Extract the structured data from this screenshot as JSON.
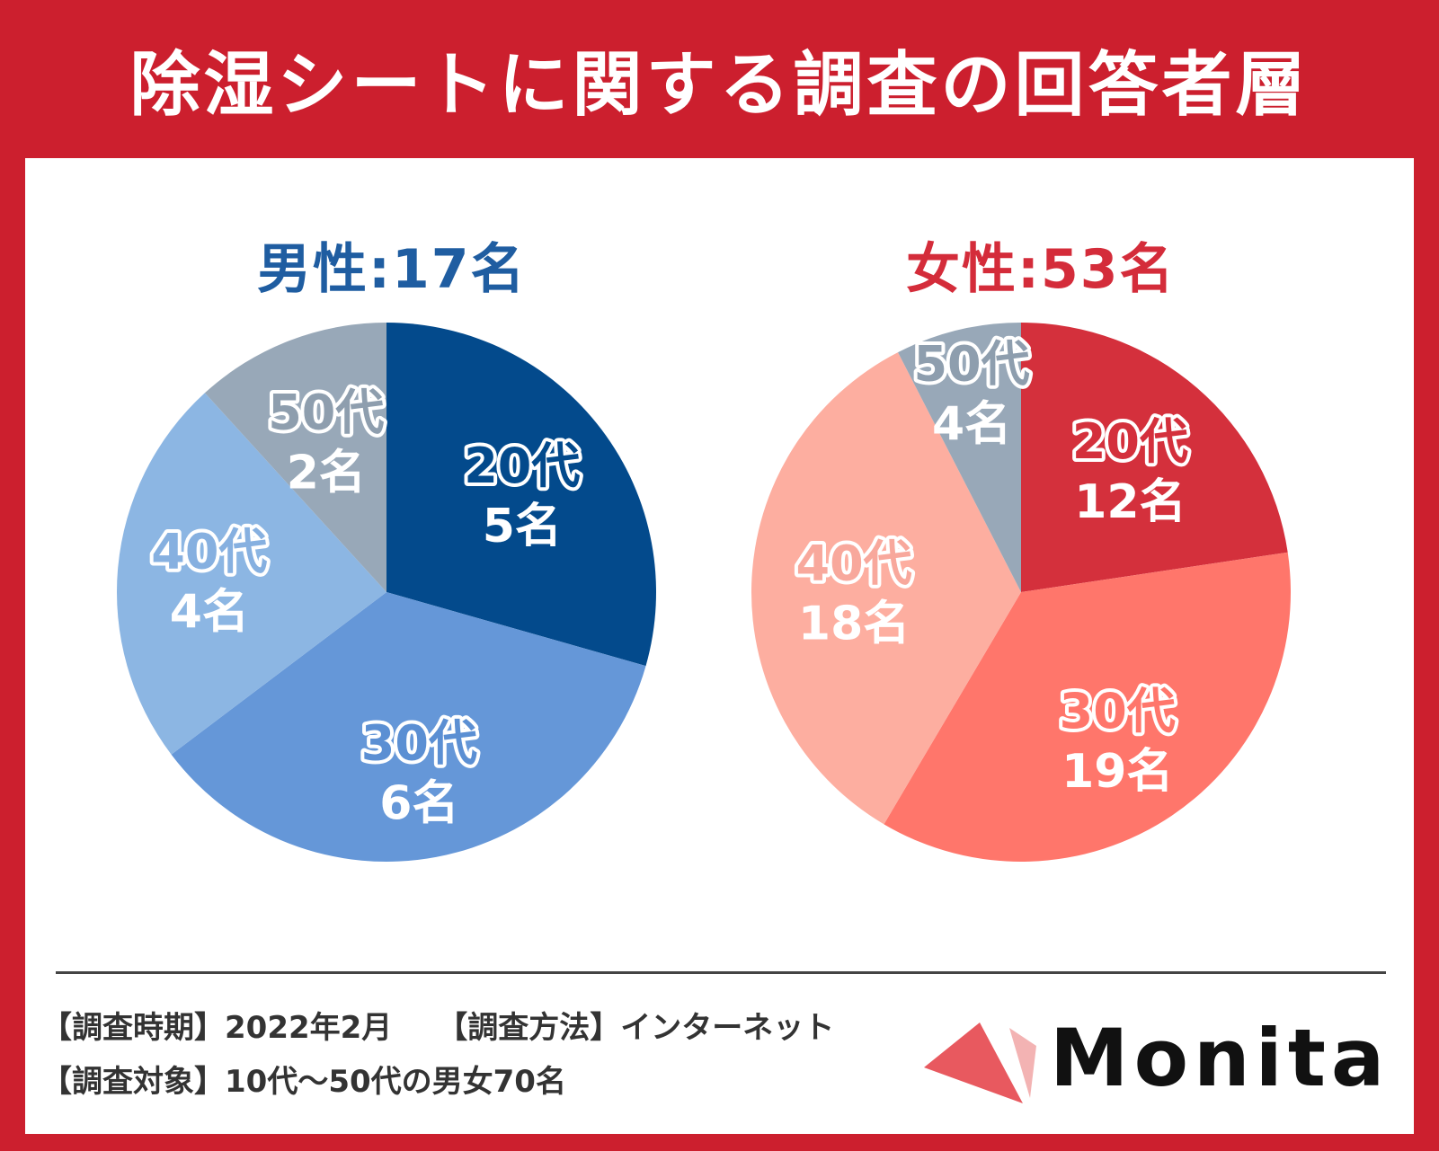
{
  "title": "除湿シートに関する調査の回答者層",
  "colors": {
    "background": "#cc1f2e",
    "panel": "#ffffff",
    "male_heading": "#1f5da1",
    "female_heading": "#d42c3a",
    "brand_triangle": "#e8595f",
    "brand_triangle_light": "#f3b3b3"
  },
  "chart_data": [
    {
      "type": "pie",
      "title": "男性:17名",
      "categories": [
        "20代",
        "30代",
        "40代",
        "50代"
      ],
      "values": [
        5,
        6,
        4,
        2
      ],
      "value_labels": [
        "5名",
        "6名",
        "4名",
        "2名"
      ],
      "colors": [
        "#034a8c",
        "#6597d8",
        "#8cb6e3",
        "#98a8b8"
      ],
      "label_colors": [
        "#034a8c",
        "#5b8fd3",
        "#86b0e0",
        "#8e9eae"
      ]
    },
    {
      "type": "pie",
      "title": "女性:53名",
      "categories": [
        "20代",
        "30代",
        "40代",
        "50代"
      ],
      "values": [
        12,
        19,
        18,
        4
      ],
      "value_labels": [
        "12名",
        "19名",
        "18名",
        "4名"
      ],
      "colors": [
        "#d4303c",
        "#ff766b",
        "#fdaea0",
        "#98a8b8"
      ],
      "label_colors": [
        "#d4303c",
        "#ff766b",
        "#f8a89c",
        "#8e9eae"
      ]
    }
  ],
  "footer": {
    "period_label": "【調査時期】",
    "period_value": "2022年2月",
    "method_label": "【調査方法】",
    "method_value": "インターネット",
    "target_label": "【調査対象】",
    "target_value": "10代〜50代の男女70名"
  },
  "brand": {
    "name": "Monita",
    "icon": "triangle-logo-icon"
  }
}
